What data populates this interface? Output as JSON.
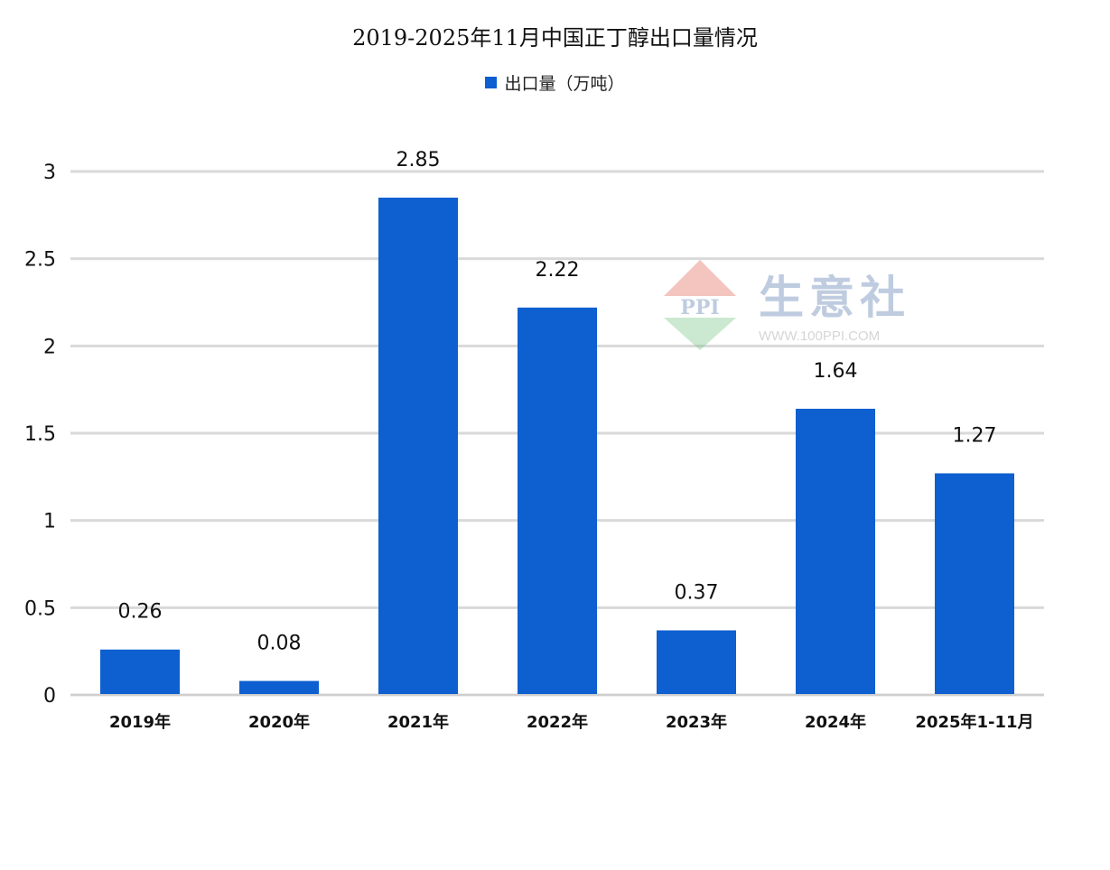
{
  "chart_data": {
    "type": "bar",
    "title": "2019-2025年11月中国正丁醇出口量情况",
    "legend": "出口量（万吨）",
    "legend_position": "top-center",
    "categories": [
      "2019年",
      "2020年",
      "2021年",
      "2022年",
      "2023年",
      "2024年",
      "2025年1-11月"
    ],
    "series": [
      {
        "name": "出口量（万吨）",
        "values": [
          0.26,
          0.08,
          2.85,
          2.22,
          0.37,
          1.64,
          1.27
        ]
      }
    ],
    "data_labels": [
      "0.26",
      "0.08",
      "2.85",
      "2.22",
      "0.37",
      "1.64",
      "1.27"
    ],
    "y_ticks": [
      "0",
      "0.5",
      "1",
      "1.5",
      "2",
      "2.5",
      "3"
    ],
    "ylim": [
      0,
      3
    ],
    "grid": true,
    "bar_color": "#0e5fd0",
    "grid_color": "#d9d9d9"
  },
  "watermark": {
    "brand": "生意社",
    "logo_text": "PPI",
    "url": "WWW.100PPI.COM"
  }
}
